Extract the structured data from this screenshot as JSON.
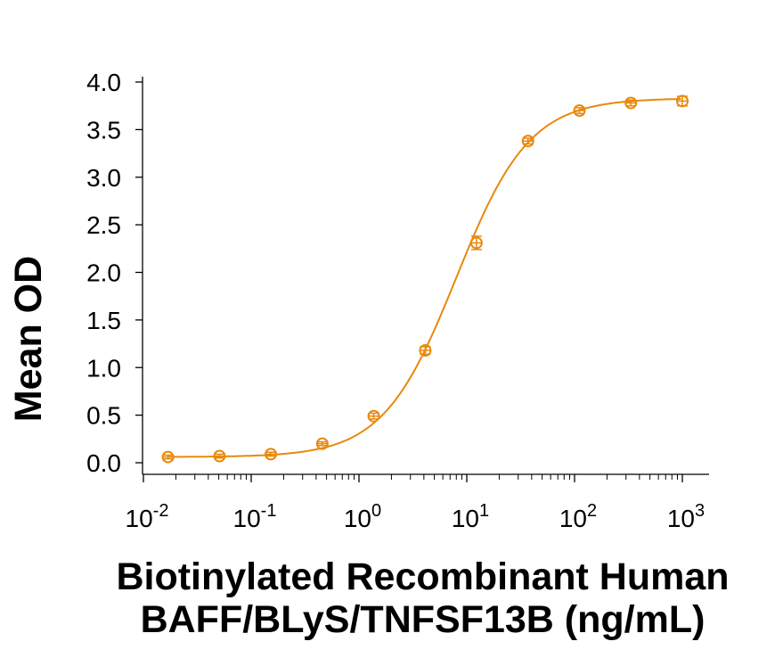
{
  "chart_data": {
    "type": "scatter",
    "subtype": "dose-response with 4PL fit curve and error bars",
    "title": "",
    "xlabel": "Biotinylated Recombinant Human BAFF/BLyS/TNFSF13B (ng/mL)",
    "xlabel_lines": [
      "Biotinylated Recombinant Human",
      "BAFF/BLyS/TNFSF13B (ng/mL)"
    ],
    "ylabel": "Mean OD",
    "xscale": "log",
    "xlim": [
      0.01,
      2000
    ],
    "ylim": [
      0,
      4.0
    ],
    "x_ticks": [
      {
        "base": "10",
        "exp": "-2",
        "value": 0.01
      },
      {
        "base": "10",
        "exp": "-1",
        "value": 0.1
      },
      {
        "base": "10",
        "exp": "0",
        "value": 1
      },
      {
        "base": "10",
        "exp": "1",
        "value": 10
      },
      {
        "base": "10",
        "exp": "2",
        "value": 100
      },
      {
        "base": "10",
        "exp": "3",
        "value": 1000
      }
    ],
    "y_ticks": [
      "0.0",
      "0.5",
      "1.0",
      "1.5",
      "2.0",
      "2.5",
      "3.0",
      "3.5",
      "4.0"
    ],
    "grid": false,
    "legend": null,
    "series": [
      {
        "name": "Biotinylated BAFF/BLyS/TNFSF13B",
        "color": "#E8890C",
        "marker": "open-circle",
        "x": [
          0.0169,
          0.0508,
          0.152,
          0.457,
          1.37,
          4.12,
          12.3,
          37.0,
          111,
          333,
          1000
        ],
        "y": [
          0.06,
          0.07,
          0.09,
          0.2,
          0.49,
          1.18,
          2.31,
          3.38,
          3.7,
          3.78,
          3.8
        ],
        "error": [
          0.02,
          0.02,
          0.02,
          0.02,
          0.03,
          0.04,
          0.07,
          0.03,
          0.03,
          0.03,
          0.05
        ]
      }
    ]
  }
}
